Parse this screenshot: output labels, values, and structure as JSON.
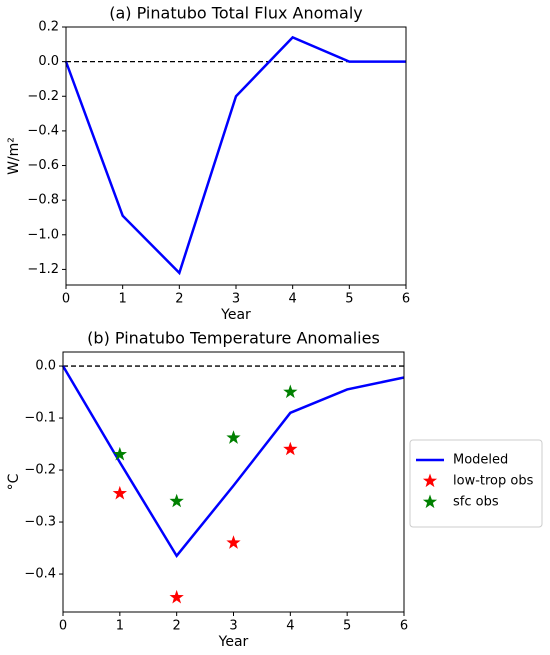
{
  "chart_data": [
    {
      "type": "line",
      "title": "(a) Pinatubo Total Flux Anomaly",
      "x_label": "Year",
      "y_label": "W/m²",
      "x": [
        0,
        1,
        2,
        3,
        4,
        5,
        6
      ],
      "values": [
        0,
        -0.89,
        -1.22,
        -0.2,
        0.14,
        0,
        0
      ],
      "color": "#0000ff",
      "hline": 0,
      "xlim": [
        0,
        6
      ],
      "xticks": [
        0,
        1,
        2,
        3,
        4,
        5,
        6
      ],
      "ylim": [
        -1.29,
        0.2
      ],
      "yticks": [
        {
          "value": 0.2,
          "label": "0.2"
        },
        {
          "value": 0,
          "label": "0.0"
        },
        {
          "value": -0.2,
          "label": "−0.2"
        },
        {
          "value": -0.4,
          "label": "−0.4"
        },
        {
          "value": -0.6,
          "label": "−0.6"
        },
        {
          "value": -0.8,
          "label": "−0.8"
        },
        {
          "value": -1.0,
          "label": "−1.0"
        },
        {
          "value": -1.2,
          "label": "−1.2"
        }
      ]
    },
    {
      "type": "line",
      "title": "(b) Pinatubo Temperature Anomalies",
      "x_label": "Year",
      "y_label": "°C",
      "x": [
        0,
        1,
        2,
        3,
        4,
        5,
        6
      ],
      "hline": 0,
      "legend": "outside right",
      "series": [
        {
          "name": "Modeled",
          "type": "line",
          "color": "#0000ff",
          "x": [
            0,
            1,
            2,
            3,
            4,
            5,
            6
          ],
          "values": [
            0,
            -0.185,
            -0.365,
            -0.23,
            -0.09,
            -0.045,
            -0.022
          ]
        },
        {
          "name": "low-trop obs",
          "type": "scatter",
          "color": "#ff0000",
          "x": [
            1,
            2,
            3,
            4
          ],
          "values": [
            -0.245,
            -0.445,
            -0.34,
            -0.16
          ]
        },
        {
          "name": "sfc obs",
          "type": "scatter",
          "color": "#008000",
          "x": [
            1,
            2,
            3,
            4
          ],
          "values": [
            -0.17,
            -0.26,
            -0.138,
            -0.05
          ]
        }
      ],
      "xlim": [
        0,
        6
      ],
      "xticks": [
        0,
        1,
        2,
        3,
        4,
        5,
        6
      ],
      "ylim": [
        -0.473,
        0.027
      ],
      "yticks": [
        {
          "value": 0,
          "label": "0.0"
        },
        {
          "value": -0.1,
          "label": "−0.1"
        },
        {
          "value": -0.2,
          "label": "−0.2"
        },
        {
          "value": -0.3,
          "label": "−0.3"
        },
        {
          "value": -0.4,
          "label": "−0.4"
        }
      ]
    }
  ]
}
